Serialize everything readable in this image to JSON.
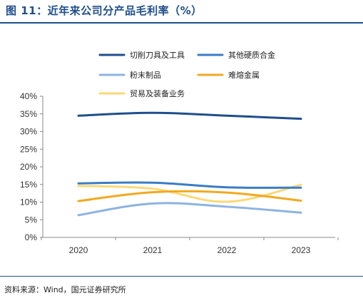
{
  "title": "图 11：近年来公司分产品毛利率（%）",
  "source": "资料来源：Wind，国元证券研究所",
  "chart_data": {
    "type": "line",
    "x": [
      "2020",
      "2021",
      "2022",
      "2023"
    ],
    "ylim": [
      0,
      40
    ],
    "yticks": [
      "0%",
      "5%",
      "10%",
      "15%",
      "20%",
      "25%",
      "30%",
      "35%",
      "40%"
    ],
    "grid": false,
    "legend_position": "top",
    "series": [
      {
        "name": "切削刀具及工具",
        "color": "#1F4E8C",
        "values": [
          34.5,
          35.3,
          34.5,
          33.6
        ]
      },
      {
        "name": "其他硬质合金",
        "color": "#3A7CC7",
        "values": [
          15.3,
          15.5,
          14.2,
          14.1
        ]
      },
      {
        "name": "粉末制品",
        "color": "#8DB3E0",
        "values": [
          6.3,
          9.6,
          8.7,
          7.0
        ]
      },
      {
        "name": "难熔金属",
        "color": "#F2A91F",
        "values": [
          10.3,
          12.8,
          12.7,
          10.4
        ]
      },
      {
        "name": "贸易及装备业务",
        "color": "#FBD978",
        "values": [
          14.6,
          13.8,
          10.1,
          14.9
        ]
      }
    ]
  }
}
